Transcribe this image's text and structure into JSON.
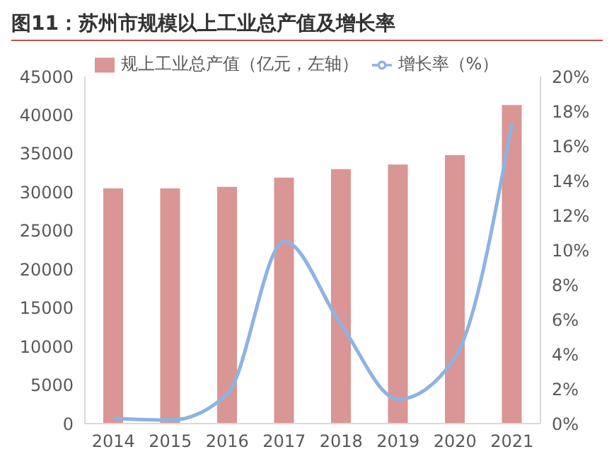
{
  "chart_data": {
    "type": "bar",
    "title": "图11：苏州市规模以上工业总产值及增长率",
    "categories": [
      "2014",
      "2015",
      "2016",
      "2017",
      "2018",
      "2019",
      "2020",
      "2021"
    ],
    "series": [
      {
        "name": "规上工业总产值（亿元，左轴）",
        "color": "#d99694",
        "values": [
          30500,
          30500,
          30700,
          31900,
          33000,
          33600,
          34800,
          41300
        ]
      },
      {
        "name": "增长率（%）",
        "type": "line",
        "axis": "y2",
        "color": "#8db3e2",
        "values": [
          0.3,
          0.2,
          1.7,
          10.5,
          5.7,
          1.4,
          3.8,
          17.3
        ]
      }
    ],
    "ylim": [
      0,
      45000
    ],
    "yticks": [
      0,
      5000,
      10000,
      15000,
      20000,
      25000,
      30000,
      35000,
      40000,
      45000
    ],
    "y2lim": [
      0,
      20
    ],
    "y2ticks": [
      {
        "value": 0,
        "label": "0%"
      },
      {
        "value": 2,
        "label": "2%"
      },
      {
        "value": 4,
        "label": "4%"
      },
      {
        "value": 6,
        "label": "6%"
      },
      {
        "value": 8,
        "label": "8%"
      },
      {
        "value": 10,
        "label": "10%"
      },
      {
        "value": 12,
        "label": "12%"
      },
      {
        "value": 14,
        "label": "14%"
      },
      {
        "value": 16,
        "label": "16%"
      },
      {
        "value": 18,
        "label": "18%"
      },
      {
        "value": 20,
        "label": "20%"
      }
    ],
    "grid": false,
    "legend": "top",
    "marker": "none",
    "line_style": "solid"
  }
}
